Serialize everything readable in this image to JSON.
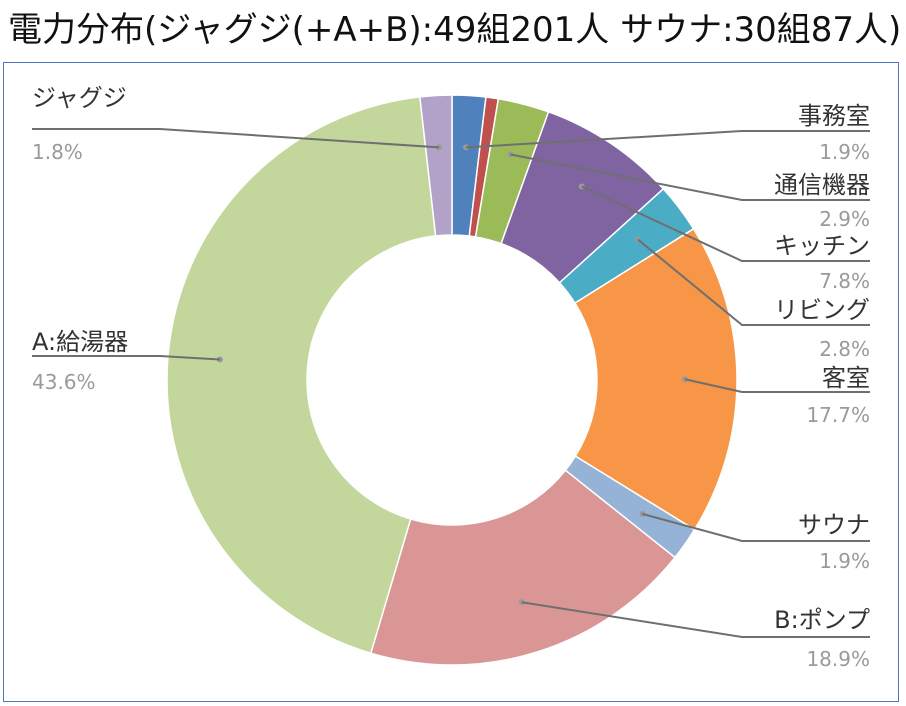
{
  "title": "電力分布(ジャグジ(+A+B):49組201人 サウナ:30組87人)",
  "chart_data": {
    "type": "pie",
    "style": "donut",
    "title": "電力分布(ジャグジ(+A+B):49組201人 サウナ:30組87人)",
    "slices": [
      {
        "name": "事務室",
        "value": 1.9,
        "label": "1.9%",
        "color": "#4f81bd",
        "label_side": "right"
      },
      {
        "name": "",
        "value": 0.7,
        "label": "",
        "color": "#c0504d",
        "label_side": "none"
      },
      {
        "name": "通信機器",
        "value": 2.9,
        "label": "2.9%",
        "color": "#9bbb59",
        "label_side": "right"
      },
      {
        "name": "キッチン",
        "value": 7.8,
        "label": "7.8%",
        "color": "#8064a2",
        "label_side": "right"
      },
      {
        "name": "リビング",
        "value": 2.8,
        "label": "2.8%",
        "color": "#4bacc6",
        "label_side": "right"
      },
      {
        "name": "客室",
        "value": 17.7,
        "label": "17.7%",
        "color": "#f79646",
        "label_side": "right"
      },
      {
        "name": "サウナ",
        "value": 1.9,
        "label": "1.9%",
        "color": "#95b3d7",
        "label_side": "right"
      },
      {
        "name": "B:ポンプ",
        "value": 18.9,
        "label": "18.9%",
        "color": "#d99694",
        "label_side": "right"
      },
      {
        "name": "A:給湯器",
        "value": 43.6,
        "label": "43.6%",
        "color": "#c3d69b",
        "label_side": "left"
      },
      {
        "name": "ジャグジ",
        "value": 1.8,
        "label": "1.8%",
        "color": "#b3a2c7",
        "label_side": "left"
      }
    ],
    "legend": "none"
  }
}
